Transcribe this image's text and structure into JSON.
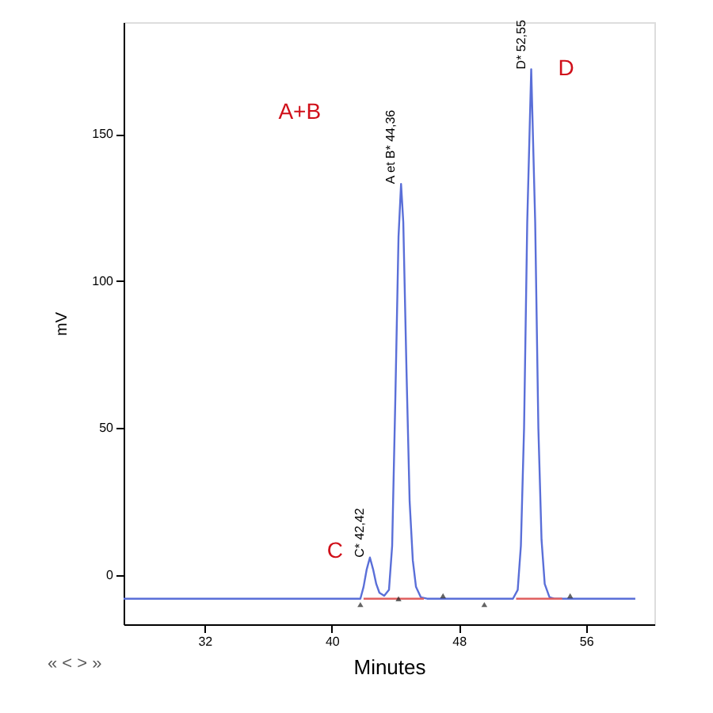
{
  "chart_data": {
    "type": "line",
    "xlabel": "Minutes",
    "ylabel": "mV",
    "xlim": [
      26.9,
      60.3
    ],
    "xticks": [
      32,
      40,
      48,
      56
    ],
    "ylim": [
      -16.7,
      188
    ],
    "yticks": [
      0,
      50,
      100,
      150
    ],
    "grid": false,
    "series": [
      {
        "color": "#5a6fd8",
        "x": [
          26.9,
          30,
          35,
          40,
          41.5,
          41.8,
          42.0,
          42.2,
          42.4,
          42.6,
          42.8,
          43.0,
          43.3,
          43.6,
          43.8,
          44.0,
          44.2,
          44.36,
          44.5,
          44.7,
          44.9,
          45.1,
          45.3,
          45.6,
          46,
          48,
          50,
          51.4,
          51.7,
          51.9,
          52.1,
          52.3,
          52.55,
          52.8,
          53.0,
          53.2,
          53.4,
          53.7,
          54,
          56,
          59.1
        ],
        "values": [
          -8,
          -8,
          -8,
          -8,
          -8,
          -8,
          -4,
          2,
          6,
          2,
          -3,
          -6,
          -7,
          -5,
          10,
          60,
          115,
          133,
          120,
          70,
          25,
          5,
          -4,
          -7.5,
          -8,
          -8,
          -8,
          -8,
          -5,
          10,
          50,
          120,
          172,
          120,
          50,
          12,
          -3,
          -7.5,
          -8,
          -8,
          -8
        ]
      },
      {
        "color": "#e06060",
        "x": [
          42.0,
          45.8
        ],
        "values": [
          -8,
          -8
        ]
      },
      {
        "color": "#e06060",
        "x": [
          51.6,
          54.5
        ],
        "values": [
          -8,
          -8
        ]
      },
      {
        "type": "scatter",
        "marker": "triangle",
        "color": "#222222",
        "x": [
          41.8,
          44.2,
          47.0,
          49.6,
          55.0
        ],
        "values": [
          -10,
          -8,
          -7,
          -10,
          -7
        ]
      }
    ],
    "annotations": [
      {
        "text": "C* 42,42",
        "x": 42.4,
        "y": 6
      },
      {
        "text": "A et B* 44,36",
        "x": 44.36,
        "y": 133
      },
      {
        "text": "D* 52,55",
        "x": 52.55,
        "y": 172
      },
      "C",
      "A+B",
      "D",
      "« < > »"
    ]
  }
}
